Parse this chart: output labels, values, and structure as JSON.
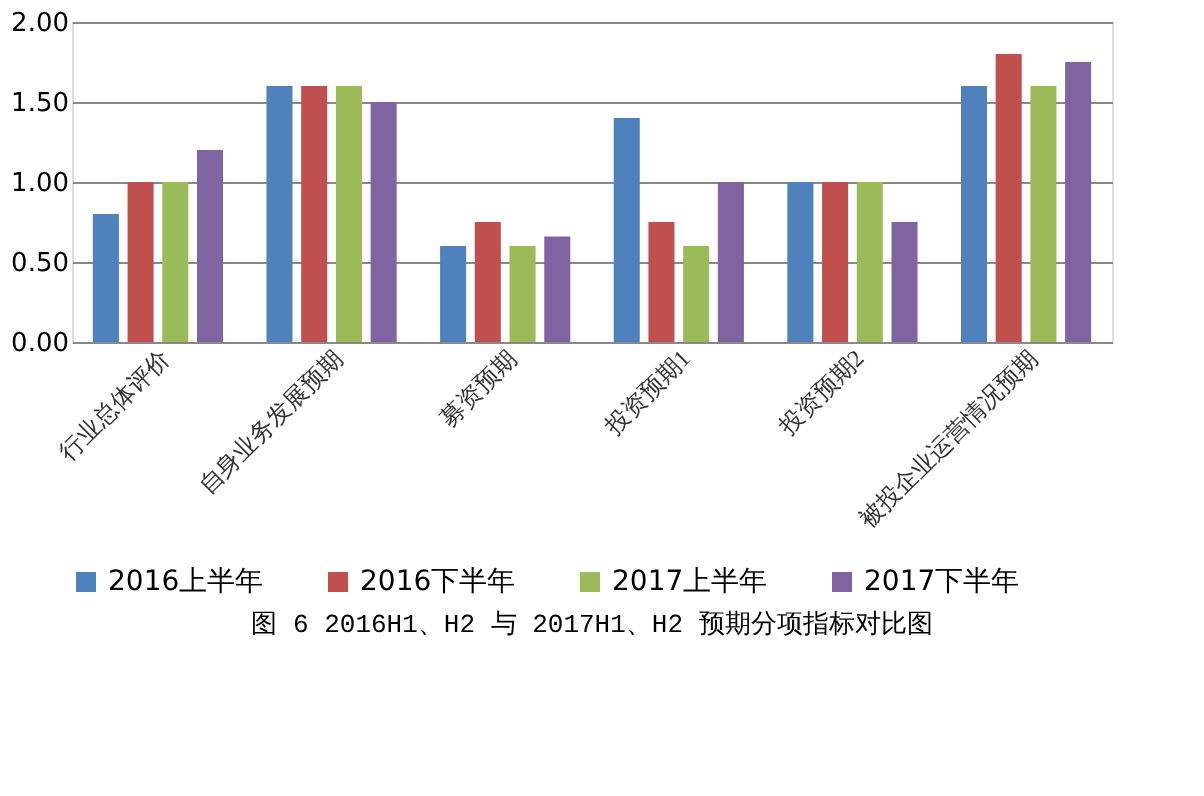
{
  "chart_data": {
    "type": "bar",
    "categories": [
      "行业总体评价",
      "自身业务发展预期",
      "募资预期",
      "投资预期1",
      "投资预期2",
      "被投企业运营情况预期"
    ],
    "series": [
      {
        "name": "2016上半年",
        "color": "#4f81bd",
        "values": [
          0.8,
          1.6,
          0.6,
          1.4,
          1.0,
          1.6
        ]
      },
      {
        "name": "2016下半年",
        "color": "#c0504d",
        "values": [
          1.0,
          1.6,
          0.75,
          0.75,
          1.0,
          1.8
        ]
      },
      {
        "name": "2017上半年",
        "color": "#9bbb59",
        "values": [
          1.0,
          1.6,
          0.6,
          0.6,
          1.0,
          1.6
        ]
      },
      {
        "name": "2017下半年",
        "color": "#8064a2",
        "values": [
          1.2,
          1.5,
          0.66,
          1.0,
          0.75,
          1.75
        ]
      }
    ],
    "ylim": [
      0,
      2
    ],
    "yticks": [
      {
        "value": 0,
        "label": "0.00"
      },
      {
        "value": 0.5,
        "label": "0.50"
      },
      {
        "value": 1,
        "label": "1.00"
      },
      {
        "value": 1.5,
        "label": "1.50"
      },
      {
        "value": 2,
        "label": "2.00"
      }
    ],
    "grid": "y",
    "legend": "bottom",
    "annotations": [
      "图 6  2016H1、H2 与 2017H1、H2 预期分项指标对比图"
    ]
  }
}
